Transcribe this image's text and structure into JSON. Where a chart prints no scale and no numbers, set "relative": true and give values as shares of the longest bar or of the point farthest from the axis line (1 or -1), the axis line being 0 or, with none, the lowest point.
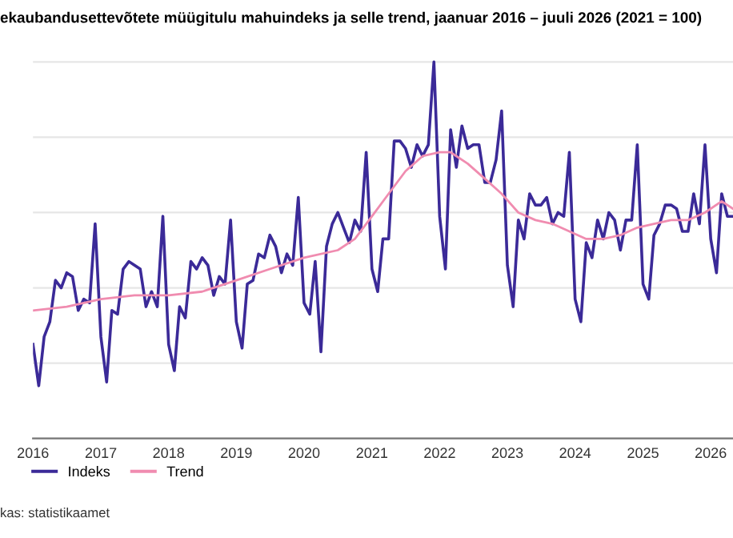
{
  "chart_data": {
    "type": "line",
    "title": "ekaubandusettevõtete müügitulu mahuindeks ja selle trend, jaanuar 2016 – juuli 2026 (2021 = 100)",
    "annotations": [
      "kas: statistikaamet"
    ],
    "relative": true,
    "x": [
      "2016-01",
      "2016-02",
      "2016-03",
      "2016-04",
      "2016-05",
      "2016-06",
      "2016-07",
      "2016-08",
      "2016-09",
      "2016-10",
      "2016-11",
      "2016-12",
      "2017-01",
      "2017-02",
      "2017-03",
      "2017-04",
      "2017-05",
      "2017-06",
      "2017-07",
      "2017-08",
      "2017-09",
      "2017-10",
      "2017-11",
      "2017-12",
      "2018-01",
      "2018-02",
      "2018-03",
      "2018-04",
      "2018-05",
      "2018-06",
      "2018-07",
      "2018-08",
      "2018-09",
      "2018-10",
      "2018-11",
      "2018-12",
      "2019-01",
      "2019-02",
      "2019-03",
      "2019-04",
      "2019-05",
      "2019-06",
      "2019-07",
      "2019-08",
      "2019-09",
      "2019-10",
      "2019-11",
      "2019-12",
      "2020-01",
      "2020-02",
      "2020-03",
      "2020-04",
      "2020-05",
      "2020-06",
      "2020-07",
      "2020-08",
      "2020-09",
      "2020-10",
      "2020-11",
      "2020-12",
      "2021-01",
      "2021-02",
      "2021-03",
      "2021-04",
      "2021-05",
      "2021-06",
      "2021-07",
      "2021-08",
      "2021-09",
      "2021-10",
      "2021-11",
      "2021-12",
      "2022-01",
      "2022-02",
      "2022-03",
      "2022-04",
      "2022-05",
      "2022-06",
      "2022-07",
      "2022-08",
      "2022-09",
      "2022-10",
      "2022-11",
      "2022-12",
      "2023-01",
      "2023-02",
      "2023-03",
      "2023-04",
      "2023-05",
      "2023-06",
      "2023-07",
      "2023-08",
      "2023-09",
      "2023-10",
      "2023-11",
      "2023-12",
      "2024-01",
      "2024-02",
      "2024-03",
      "2024-04",
      "2024-05",
      "2024-06",
      "2024-07",
      "2024-08",
      "2024-09",
      "2024-10",
      "2024-11",
      "2024-12",
      "2025-01",
      "2025-02",
      "2025-03",
      "2025-04",
      "2025-05",
      "2025-06",
      "2025-07",
      "2025-08",
      "2025-09",
      "2025-10",
      "2025-11",
      "2025-12",
      "2026-01",
      "2026-02",
      "2026-03",
      "2026-04",
      "2026-05"
    ],
    "xlim": [
      "2016-01",
      "2026-05"
    ],
    "xticks": [
      {
        "value": "2016-01",
        "label": "2016"
      },
      {
        "value": "2017-01",
        "label": "2017"
      },
      {
        "value": "2018-01",
        "label": "2018"
      },
      {
        "value": "2019-01",
        "label": "2019"
      },
      {
        "value": "2020-01",
        "label": "2020"
      },
      {
        "value": "2021-01",
        "label": "2021"
      },
      {
        "value": "2022-01",
        "label": "2022"
      },
      {
        "value": "2023-01",
        "label": "2023"
      },
      {
        "value": "2024-01",
        "label": "2024"
      },
      {
        "value": "2025-01",
        "label": "2025"
      },
      {
        "value": "2026-01",
        "label": "2026"
      }
    ],
    "series": [
      {
        "name": "Indeks",
        "color": "#3b2a98",
        "values": [
          0.25,
          0.14,
          0.27,
          0.31,
          0.42,
          0.4,
          0.44,
          0.43,
          0.34,
          0.37,
          0.36,
          0.57,
          0.27,
          0.15,
          0.34,
          0.33,
          0.45,
          0.47,
          0.46,
          0.45,
          0.35,
          0.39,
          0.35,
          0.59,
          0.25,
          0.18,
          0.35,
          0.32,
          0.47,
          0.45,
          0.48,
          0.46,
          0.38,
          0.43,
          0.41,
          0.58,
          0.31,
          0.24,
          0.41,
          0.42,
          0.49,
          0.48,
          0.54,
          0.51,
          0.44,
          0.49,
          0.46,
          0.64,
          0.36,
          0.33,
          0.47,
          0.23,
          0.51,
          0.57,
          0.6,
          0.56,
          0.52,
          0.58,
          0.55,
          0.76,
          0.45,
          0.39,
          0.53,
          0.53,
          0.79,
          0.79,
          0.77,
          0.72,
          0.78,
          0.75,
          0.78,
          1.0,
          0.59,
          0.45,
          0.82,
          0.72,
          0.83,
          0.77,
          0.78,
          0.78,
          0.68,
          0.68,
          0.74,
          0.87,
          0.46,
          0.35,
          0.58,
          0.53,
          0.65,
          0.62,
          0.62,
          0.64,
          0.57,
          0.6,
          0.59,
          0.76,
          0.37,
          0.31,
          0.52,
          0.48,
          0.58,
          0.53,
          0.6,
          0.58,
          0.5,
          0.58,
          0.58,
          0.78,
          0.41,
          0.37,
          0.54,
          0.57,
          0.62,
          0.62,
          0.61,
          0.55,
          0.55,
          0.65,
          0.57,
          0.78,
          0.53,
          0.44,
          0.65,
          0.59,
          0.59
        ]
      },
      {
        "name": "Trend",
        "color": "#f08cb0",
        "x": [
          "2016-01",
          "2016-07",
          "2017-01",
          "2017-07",
          "2018-01",
          "2018-07",
          "2019-01",
          "2019-07",
          "2020-01",
          "2020-07",
          "2020-10",
          "2021-01",
          "2021-04",
          "2021-07",
          "2021-10",
          "2022-01",
          "2022-03",
          "2022-06",
          "2022-09",
          "2022-12",
          "2023-03",
          "2023-06",
          "2023-09",
          "2023-12",
          "2024-03",
          "2024-06",
          "2024-09",
          "2024-12",
          "2025-03",
          "2025-06",
          "2025-09",
          "2025-12",
          "2026-03",
          "2026-05"
        ],
        "values": [
          0.34,
          0.35,
          0.37,
          0.38,
          0.38,
          0.39,
          0.42,
          0.45,
          0.48,
          0.5,
          0.53,
          0.59,
          0.65,
          0.71,
          0.75,
          0.76,
          0.76,
          0.73,
          0.69,
          0.65,
          0.6,
          0.58,
          0.57,
          0.55,
          0.53,
          0.53,
          0.54,
          0.56,
          0.57,
          0.58,
          0.58,
          0.6,
          0.63,
          0.61
        ]
      }
    ],
    "grid": "y",
    "legend": "bottom left"
  }
}
